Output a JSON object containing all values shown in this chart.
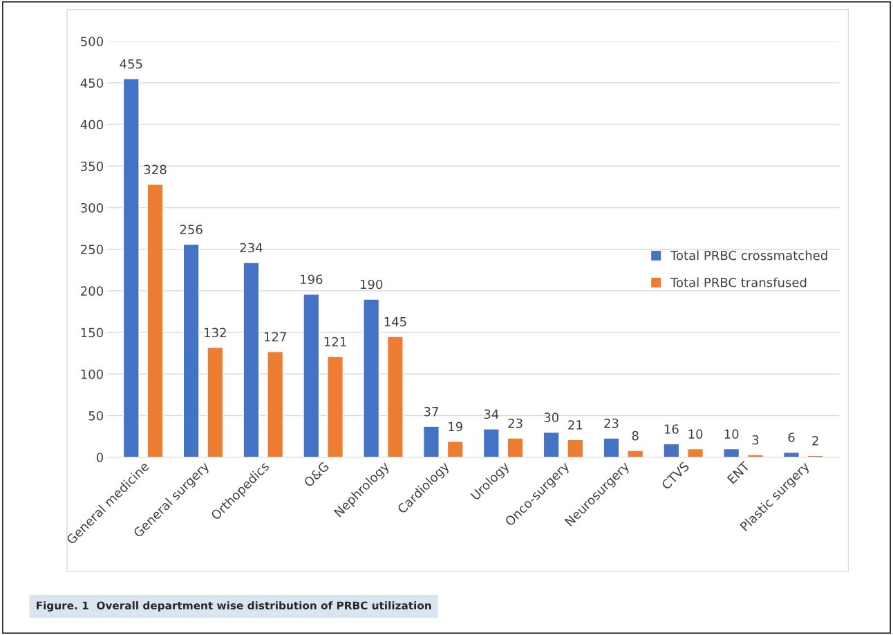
{
  "chart_data": {
    "type": "bar",
    "categories": [
      "General medicine",
      "General surgery",
      "Orthopedics",
      "O&G",
      "Nephrology",
      "Cardiology",
      "Urology",
      "Onco-surgery",
      "Neurosurgery",
      "CTVS",
      "ENT",
      "Plastic surgery"
    ],
    "series": [
      {
        "name": "Total PRBC crossmatched",
        "color": "#4472c4",
        "values": [
          455,
          256,
          234,
          196,
          190,
          37,
          34,
          30,
          23,
          16,
          10,
          6
        ]
      },
      {
        "name": "Total PRBC transfused",
        "color": "#ed7d31",
        "values": [
          328,
          132,
          127,
          121,
          145,
          19,
          23,
          21,
          8,
          10,
          3,
          2
        ]
      }
    ],
    "ylim": [
      0,
      500
    ],
    "yticks": [
      0,
      50,
      100,
      150,
      200,
      250,
      300,
      350,
      400,
      450,
      500
    ],
    "grid": "y",
    "legend": "right",
    "data_labels": true,
    "annotations": [
      "Figure. 1  Overall department wise distribution of PRBC utilization"
    ]
  }
}
